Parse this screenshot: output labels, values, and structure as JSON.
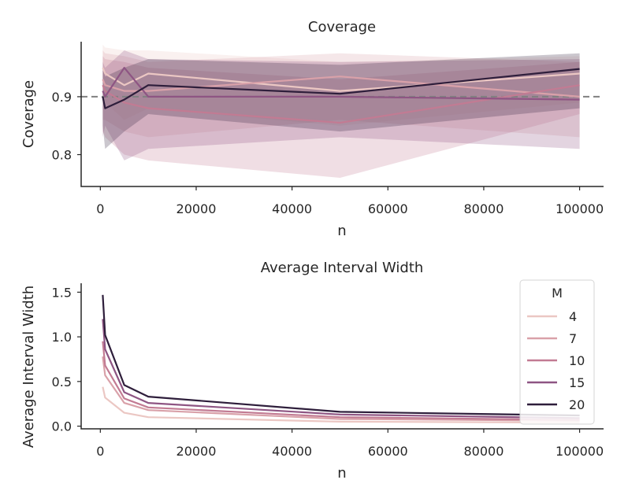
{
  "chart_data": [
    {
      "type": "line",
      "title": "Coverage",
      "xlabel": "n",
      "ylabel": "Coverage",
      "xlim": [
        -4000,
        105000
      ],
      "ylim": [
        0.745,
        0.995
      ],
      "xticks": [
        0,
        20000,
        40000,
        60000,
        80000,
        100000
      ],
      "xtick_labels": [
        "0",
        "20000",
        "40000",
        "60000",
        "80000",
        "100000"
      ],
      "yticks": [
        0.8,
        0.9
      ],
      "ytick_labels": [
        "0.8",
        "0.9"
      ],
      "reference_line": {
        "y": 0.9,
        "style": "dashed",
        "color": "#808080"
      },
      "x": [
        500,
        1000,
        5000,
        10000,
        50000,
        100000
      ],
      "series": [
        {
          "name": "4",
          "color": "#ebc7c3",
          "values": [
            0.95,
            0.94,
            0.92,
            0.94,
            0.91,
            0.94
          ],
          "lower": [
            0.9,
            0.89,
            0.86,
            0.88,
            0.85,
            0.89
          ],
          "upper": [
            0.99,
            0.985,
            0.98,
            0.98,
            0.96,
            0.97
          ]
        },
        {
          "name": "7",
          "color": "#d9a1a9",
          "values": [
            0.93,
            0.92,
            0.91,
            0.91,
            0.935,
            0.9
          ],
          "lower": [
            0.86,
            0.86,
            0.84,
            0.83,
            0.86,
            0.83
          ],
          "upper": [
            0.98,
            0.975,
            0.97,
            0.96,
            0.975,
            0.96
          ]
        },
        {
          "name": "10",
          "color": "#c27b93",
          "values": [
            0.92,
            0.91,
            0.89,
            0.88,
            0.855,
            0.92
          ],
          "lower": [
            0.84,
            0.83,
            0.8,
            0.79,
            0.76,
            0.87
          ],
          "upper": [
            0.97,
            0.965,
            0.96,
            0.95,
            0.93,
            0.96
          ]
        },
        {
          "name": "15",
          "color": "#8e5583",
          "values": [
            0.91,
            0.9,
            0.95,
            0.9,
            0.9,
            0.895
          ],
          "lower": [
            0.83,
            0.85,
            0.79,
            0.81,
            0.83,
            0.81
          ],
          "upper": [
            0.96,
            0.95,
            0.98,
            0.965,
            0.96,
            0.965
          ]
        },
        {
          "name": "20",
          "color": "#2e1e3b",
          "values": [
            0.9,
            0.88,
            0.895,
            0.92,
            0.905,
            0.948
          ],
          "lower": [
            0.85,
            0.81,
            0.84,
            0.87,
            0.84,
            0.88
          ],
          "upper": [
            0.95,
            0.935,
            0.95,
            0.965,
            0.955,
            0.975
          ]
        }
      ]
    },
    {
      "type": "line",
      "title": "Average Interval Width",
      "xlabel": "n",
      "ylabel": "Average Interval Width",
      "xlim": [
        -4000,
        105000
      ],
      "ylim": [
        -0.03,
        1.6
      ],
      "xticks": [
        0,
        20000,
        40000,
        60000,
        80000,
        100000
      ],
      "xtick_labels": [
        "0",
        "20000",
        "40000",
        "60000",
        "80000",
        "100000"
      ],
      "yticks": [
        0.0,
        0.5,
        1.0,
        1.5
      ],
      "ytick_labels": [
        "0.0",
        "0.5",
        "1.0",
        "1.5"
      ],
      "legend": {
        "title": "M",
        "position": "upper-right"
      },
      "x": [
        500,
        1000,
        5000,
        10000,
        50000,
        100000
      ],
      "series": [
        {
          "name": "4",
          "color": "#ebc7c3",
          "values": [
            0.44,
            0.32,
            0.15,
            0.1,
            0.05,
            0.04
          ]
        },
        {
          "name": "7",
          "color": "#d9a1a9",
          "values": [
            0.78,
            0.57,
            0.26,
            0.18,
            0.08,
            0.06
          ]
        },
        {
          "name": "10",
          "color": "#c27b93",
          "values": [
            0.95,
            0.68,
            0.31,
            0.21,
            0.1,
            0.07
          ]
        },
        {
          "name": "15",
          "color": "#8e5583",
          "values": [
            1.2,
            0.86,
            0.38,
            0.26,
            0.13,
            0.09
          ]
        },
        {
          "name": "20",
          "color": "#2e1e3b",
          "values": [
            1.47,
            1.02,
            0.46,
            0.33,
            0.16,
            0.12
          ]
        }
      ]
    }
  ]
}
